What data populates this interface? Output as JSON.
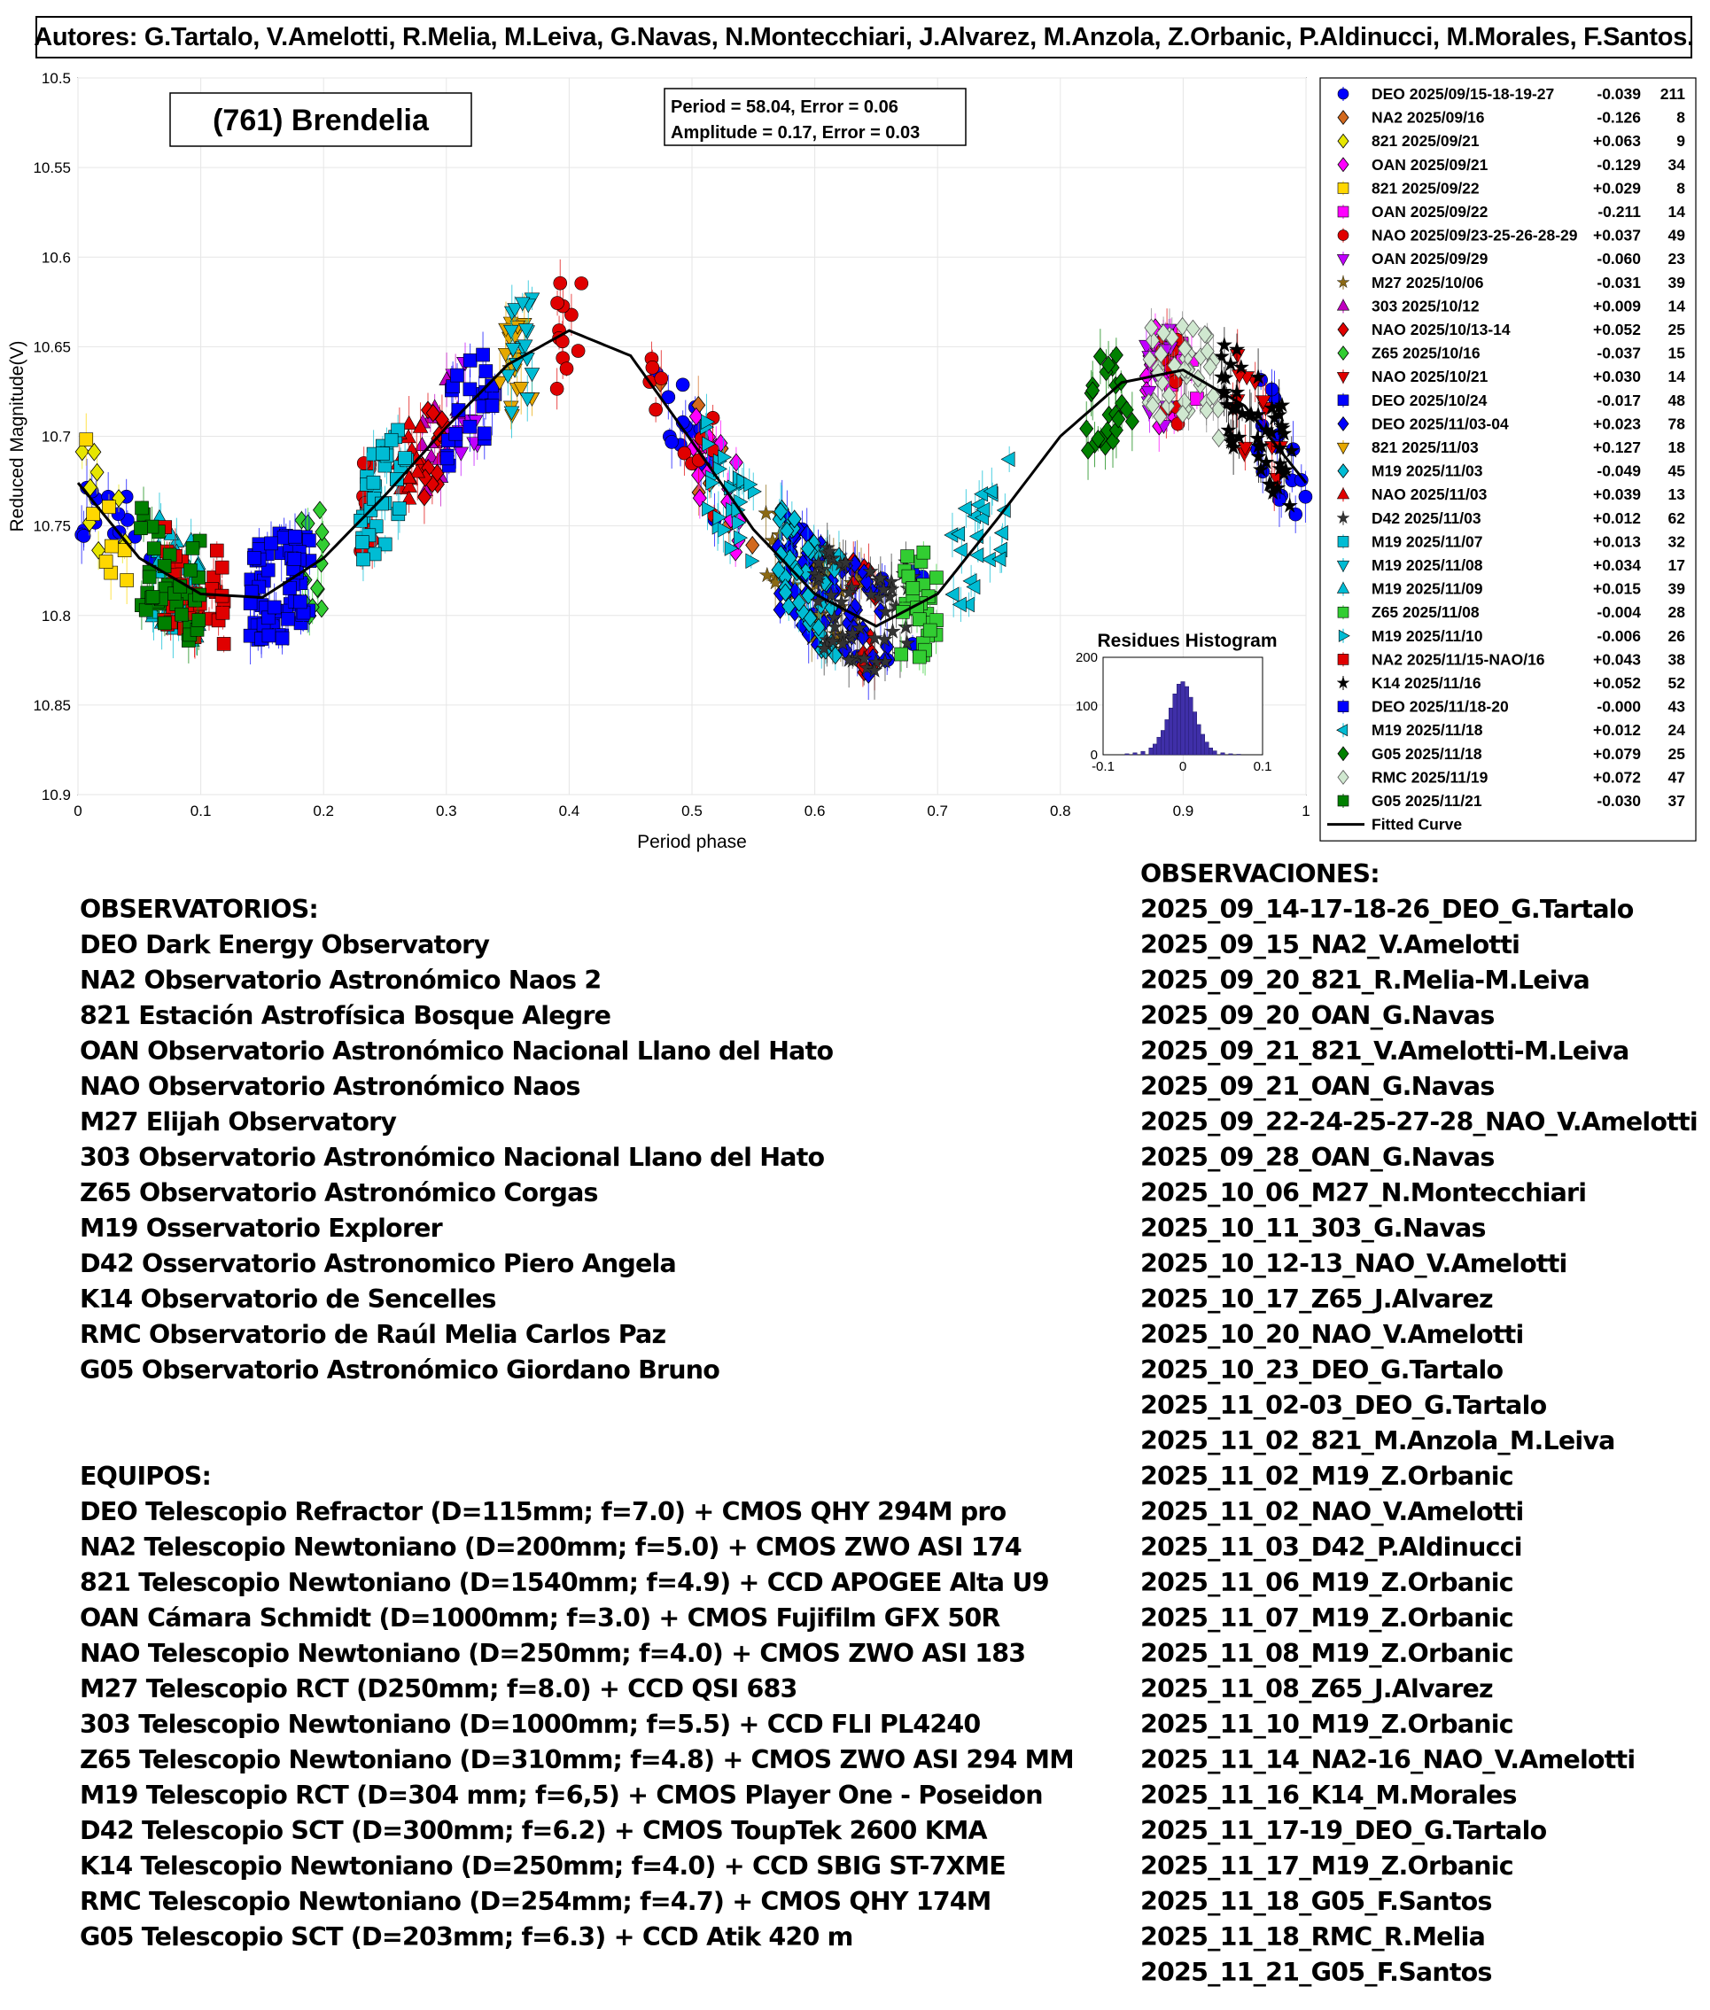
{
  "authors": "Autores: G.Tartalo, V.Amelotti, R.Melia, M.Leiva, G.Navas, N.Montecchiari, J.Alvarez, M.Anzola, Z.Orbanic, P.Aldinucci, M.Morales, F.Santos.",
  "chart_data": {
    "type": "scatter",
    "title": "(761) Brendelia",
    "xlabel": "Period phase",
    "ylabel": "Reduced Magnitude(V)",
    "xlim": [
      0,
      1
    ],
    "ylim": [
      10.5,
      10.9
    ],
    "y_inverted": true,
    "grid": true,
    "legend_position": "right-outside",
    "xticks": [
      "0",
      "0.1",
      "0.2",
      "0.3",
      "0.4",
      "0.5",
      "0.6",
      "0.7",
      "0.8",
      "0.9",
      "1"
    ],
    "yticks": [
      "10.5",
      "10.55",
      "10.6",
      "10.65",
      "10.7",
      "10.75",
      "10.8",
      "10.85",
      "10.9"
    ],
    "fit_box": {
      "line1": "Period =  58.04, Error = 0.06",
      "line2": "Amplitude = 0.17, Error = 0.03"
    },
    "fitted_curve": {
      "name": "Fitted Curve",
      "x": [
        0,
        0.05,
        0.1,
        0.15,
        0.2,
        0.25,
        0.3,
        0.35,
        0.4,
        0.45,
        0.5,
        0.55,
        0.6,
        0.65,
        0.7,
        0.75,
        0.8,
        0.85,
        0.9,
        0.95,
        1
      ],
      "y": [
        10.726,
        10.768,
        10.788,
        10.79,
        10.768,
        10.733,
        10.695,
        10.66,
        10.641,
        10.655,
        10.703,
        10.752,
        10.788,
        10.806,
        10.788,
        10.745,
        10.7,
        10.67,
        10.663,
        10.683,
        10.726
      ]
    },
    "series": [
      {
        "label": "DEO 2025/09/15-18-19-27",
        "offset": "-0.039",
        "count": "211",
        "color": "#0000ff",
        "marker": "circle",
        "phase_ranges": [
          [
            0.0,
            0.06
          ],
          [
            0.47,
            0.52
          ],
          [
            0.58,
            0.7
          ],
          [
            0.96,
            1.0
          ]
        ]
      },
      {
        "label": "NA2 2025/09/16",
        "offset": "-0.126",
        "count": "8",
        "color": "#d2691e",
        "marker": "diamond",
        "phase_ranges": [
          [
            0.47,
            0.55
          ]
        ]
      },
      {
        "label": "821 2025/09/21",
        "offset": "+0.063",
        "count": "9",
        "color": "#e6e600",
        "marker": "diamond",
        "phase_ranges": [
          [
            0.0,
            0.04
          ]
        ]
      },
      {
        "label": "OAN 2025/09/21",
        "offset": "-0.129",
        "count": "34",
        "color": "#ff00ff",
        "marker": "diamond",
        "phase_ranges": [
          [
            0.5,
            0.54
          ],
          [
            0.87,
            0.9
          ]
        ]
      },
      {
        "label": "821 2025/09/22",
        "offset": "+0.029",
        "count": "8",
        "color": "#ffd700",
        "marker": "square",
        "phase_ranges": [
          [
            0.0,
            0.04
          ]
        ]
      },
      {
        "label": "OAN 2025/09/22",
        "offset": "-0.211",
        "count": "14",
        "color": "#ff00ff",
        "marker": "square",
        "phase_ranges": [
          [
            0.88,
            0.92
          ]
        ]
      },
      {
        "label": "NAO 2025/09/23-25-26-28-29",
        "offset": "+0.037",
        "count": "49",
        "color": "#e00000",
        "marker": "circle",
        "phase_ranges": [
          [
            0.23,
            0.24
          ],
          [
            0.39,
            0.41
          ],
          [
            0.46,
            0.52
          ],
          [
            0.88,
            0.9
          ]
        ]
      },
      {
        "label": "OAN 2025/09/29",
        "offset": "-0.060",
        "count": "23",
        "color": "#c000ff",
        "marker": "triangle-down",
        "phase_ranges": [
          [
            0.3,
            0.33
          ],
          [
            0.87,
            0.89
          ]
        ]
      },
      {
        "label": "M27 2025/10/06",
        "offset": "-0.031",
        "count": "39",
        "color": "#8b6914",
        "marker": "star",
        "phase_ranges": [
          [
            0.56,
            0.64
          ]
        ]
      },
      {
        "label": "303 2025/10/12",
        "offset": "+0.009",
        "count": "14",
        "color": "#c000c0",
        "marker": "triangle-up",
        "phase_ranges": [
          [
            0.28,
            0.31
          ]
        ]
      },
      {
        "label": "NAO 2025/10/13-14",
        "offset": "+0.052",
        "count": "25",
        "color": "#e00000",
        "marker": "diamond",
        "phase_ranges": [
          [
            0.28,
            0.3
          ],
          [
            0.63,
            0.65
          ]
        ]
      },
      {
        "label": "Z65 2025/10/16",
        "offset": "-0.037",
        "count": "15",
        "color": "#32cd32",
        "marker": "diamond",
        "phase_ranges": [
          [
            0.18,
            0.2
          ]
        ]
      },
      {
        "label": "NAO 2025/10/21",
        "offset": "+0.030",
        "count": "14",
        "color": "#e00000",
        "marker": "triangle-down",
        "phase_ranges": [
          [
            0.94,
            0.98
          ]
        ]
      },
      {
        "label": "DEO 2025/10/24",
        "offset": "-0.017",
        "count": "48",
        "color": "#0000ff",
        "marker": "square",
        "phase_ranges": [
          [
            0.14,
            0.19
          ],
          [
            0.3,
            0.34
          ]
        ]
      },
      {
        "label": "DEO 2025/11/03-04",
        "offset": "+0.023",
        "count": "78",
        "color": "#0000ff",
        "marker": "diamond",
        "phase_ranges": [
          [
            0.57,
            0.66
          ]
        ]
      },
      {
        "label": "821 2025/11/03",
        "offset": "+0.127",
        "count": "18",
        "color": "#e6a800",
        "marker": "triangle-down",
        "phase_ranges": [
          [
            0.34,
            0.37
          ]
        ]
      },
      {
        "label": "M19 2025/11/03",
        "offset": "-0.049",
        "count": "45",
        "color": "#00bcd4",
        "marker": "diamond",
        "phase_ranges": [
          [
            0.57,
            0.62
          ]
        ]
      },
      {
        "label": "NAO 2025/11/03",
        "offset": "+0.039",
        "count": "13",
        "color": "#e00000",
        "marker": "triangle-up",
        "phase_ranges": [
          [
            0.26,
            0.28
          ]
        ]
      },
      {
        "label": "D42 2025/11/03",
        "offset": "+0.012",
        "count": "62",
        "color": "#333333",
        "marker": "star",
        "phase_ranges": [
          [
            0.6,
            0.68
          ]
        ]
      },
      {
        "label": "M19 2025/11/07",
        "offset": "+0.013",
        "count": "32",
        "color": "#00bcd4",
        "marker": "square",
        "phase_ranges": [
          [
            0.23,
            0.27
          ]
        ]
      },
      {
        "label": "M19 2025/11/08",
        "offset": "+0.034",
        "count": "17",
        "color": "#00bcd4",
        "marker": "triangle-down",
        "phase_ranges": [
          [
            0.35,
            0.37
          ]
        ]
      },
      {
        "label": "M19 2025/11/09",
        "offset": "+0.015",
        "count": "39",
        "color": "#00bcd4",
        "marker": "triangle-up",
        "phase_ranges": [
          [
            0.06,
            0.1
          ]
        ]
      },
      {
        "label": "Z65 2025/11/08",
        "offset": "-0.004",
        "count": "28",
        "color": "#32cd32",
        "marker": "square",
        "phase_ranges": [
          [
            0.67,
            0.7
          ]
        ]
      },
      {
        "label": "M19 2025/11/10",
        "offset": "-0.006",
        "count": "26",
        "color": "#00bcd4",
        "marker": "triangle-right",
        "phase_ranges": [
          [
            0.51,
            0.55
          ]
        ]
      },
      {
        "label": "NA2 2025/11/15-NAO/16",
        "offset": "+0.043",
        "count": "38",
        "color": "#e00000",
        "marker": "square",
        "phase_ranges": [
          [
            0.07,
            0.12
          ]
        ]
      },
      {
        "label": "K14 2025/11/16",
        "offset": "+0.052",
        "count": "52",
        "color": "#000000",
        "marker": "star",
        "phase_ranges": [
          [
            0.93,
            0.99
          ]
        ]
      },
      {
        "label": "DEO 2025/11/18-20",
        "offset": "-0.000",
        "count": "43",
        "color": "#0000ff",
        "marker": "square",
        "phase_ranges": [
          [
            0.14,
            0.19
          ]
        ]
      },
      {
        "label": "M19 2025/11/18",
        "offset": "+0.012",
        "count": "24",
        "color": "#00bcd4",
        "marker": "triangle-left",
        "phase_ranges": [
          [
            0.71,
            0.76
          ]
        ]
      },
      {
        "label": "G05 2025/11/18",
        "offset": "+0.079",
        "count": "25",
        "color": "#008000",
        "marker": "diamond",
        "phase_ranges": [
          [
            0.82,
            0.86
          ]
        ]
      },
      {
        "label": "RMC 2025/11/19",
        "offset": "+0.072",
        "count": "47",
        "color": "#808080",
        "marker": "diamond-open",
        "phase_ranges": [
          [
            0.87,
            0.93
          ]
        ]
      },
      {
        "label": "G05 2025/11/21",
        "offset": "-0.030",
        "count": "37",
        "color": "#008000",
        "marker": "square",
        "phase_ranges": [
          [
            0.05,
            0.1
          ]
        ]
      }
    ],
    "fitted_curve_label": "Fitted Curve",
    "histogram": {
      "title": "Residues Histogram",
      "xticks": [
        "-0.1",
        "0",
        "0.1"
      ],
      "yticks": [
        "0",
        "100",
        "200"
      ],
      "xlim": [
        -0.1,
        0.1
      ],
      "ylim": [
        0,
        200
      ],
      "bins": [
        -0.07,
        -0.06,
        -0.05,
        -0.04,
        -0.035,
        -0.03,
        -0.025,
        -0.02,
        -0.015,
        -0.01,
        -0.005,
        0,
        0.005,
        0.01,
        0.015,
        0.02,
        0.025,
        0.03,
        0.035,
        0.04,
        0.05,
        0.06,
        0.07
      ],
      "counts": [
        2,
        4,
        7,
        14,
        22,
        36,
        50,
        72,
        96,
        125,
        145,
        150,
        140,
        118,
        88,
        62,
        42,
        26,
        14,
        8,
        4,
        2,
        1
      ],
      "color": "#3f2fa8"
    }
  },
  "observatorios": {
    "heading": "OBSERVATORIOS:",
    "items": [
      "DEO Dark Energy Observatory",
      "NA2 Observatorio Astronómico Naos 2",
      "821 Estación Astrofísica Bosque Alegre",
      "OAN Observatorio Astronómico Nacional Llano del Hato",
      "NAO Observatorio Astronómico Naos",
      "M27 Elijah Observatory",
      "303 Observatorio Astronómico Nacional Llano del Hato",
      "Z65 Observatorio Astronómico Corgas",
      "M19 Osservatorio Explorer",
      "D42 Osservatorio Astronomico Piero Angela",
      "K14 Observatorio de Sencelles",
      "RMC Observatorio de Raúl Melia Carlos Paz",
      "G05 Observatorio Astronómico Giordano Bruno"
    ]
  },
  "equipos": {
    "heading": "EQUIPOS:",
    "items": [
      "DEO Telescopio Refractor (D=115mm; f=7.0) + CMOS QHY 294M pro",
      "NA2 Telescopio Newtoniano (D=200mm; f=5.0) + CMOS ZWO ASI 174",
      "821 Telescopio Newtoniano (D=1540mm; f=4.9) + CCD APOGEE Alta U9",
      "OAN Cámara Schmidt (D=1000mm; f=3.0) + CMOS Fujifilm GFX 50R",
      "NAO Telescopio Newtoniano (D=250mm; f=4.0) + CMOS ZWO ASI 183",
      "M27 Telescopio RCT (D250mm; f=8.0) + CCD QSI 683",
      "303 Telescopio Newtoniano (D=1000mm; f=5.5) + CCD FLI PL4240",
      "Z65 Telescopio Newtoniano (D=310mm; f=4.8) + CMOS ZWO ASI 294 MM",
      "M19 Telescopio RCT (D=304 mm; f=6,5) + CMOS Player One - Poseidon",
      "D42 Telescopio SCT (D=300mm; f=6.2) + CMOS ToupTek 2600 KMA",
      "K14 Telescopio Newtoniano (D=250mm; f=4.0) + CCD SBIG ST-7XME",
      "RMC Telescopio Newtoniano (D=254mm; f=4.7) + CMOS QHY 174M",
      "G05 Telescopio SCT (D=203mm; f=6.3) + CCD Atik 420 m"
    ]
  },
  "observaciones": {
    "heading": "OBSERVACIONES:",
    "items": [
      "2025_09_14-17-18-26_DEO_G.Tartalo",
      "2025_09_15_NA2_V.Amelotti",
      "2025_09_20_821_R.Melia-M.Leiva",
      "2025_09_20_OAN_G.Navas",
      "2025_09_21_821_V.Amelotti-M.Leiva",
      "2025_09_21_OAN_G.Navas",
      "2025_09_22-24-25-27-28_NAO_V.Amelotti",
      "2025_09_28_OAN_G.Navas",
      "2025_10_06_M27_N.Montecchiari",
      "2025_10_11_303_G.Navas",
      "2025_10_12-13_NAO_V.Amelotti",
      "2025_10_17_Z65_J.Alvarez",
      "2025_10_20_NAO_V.Amelotti",
      "2025_10_23_DEO_G.Tartalo",
      "2025_11_02-03_DEO_G.Tartalo",
      "2025_11_02_821_M.Anzola_M.Leiva",
      "2025_11_02_M19_Z.Orbanic",
      "2025_11_02_NAO_V.Amelotti",
      "2025_11_03_D42_P.Aldinucci",
      "2025_11_06_M19_Z.Orbanic",
      "2025_11_07_M19_Z.Orbanic",
      "2025_11_08_M19_Z.Orbanic",
      "2025_11_08_Z65_J.Alvarez",
      "2025_11_10_M19_Z.Orbanic",
      "2025_11_14_NA2-16_NAO_V.Amelotti",
      "2025_11_16_K14_M.Morales",
      "2025_11_17-19_DEO_G.Tartalo",
      "2025_11_17_M19_Z.Orbanic",
      "2025_11_18_G05_F.Santos",
      "2025_11_18_RMC_R.Melia",
      "2025_11_21_G05_F.Santos"
    ]
  }
}
